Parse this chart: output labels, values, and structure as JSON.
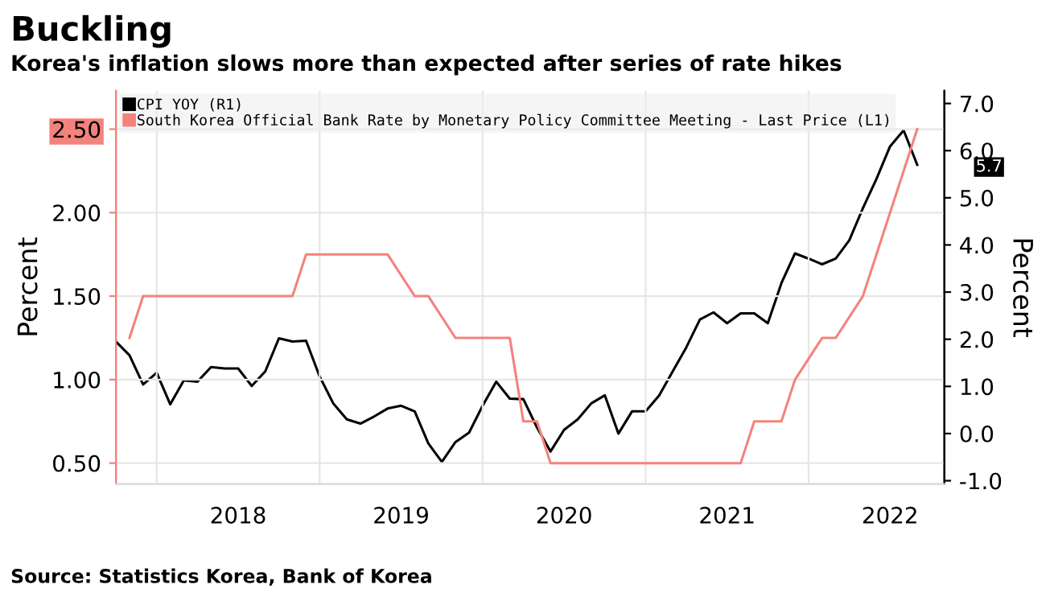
{
  "chart_data": {
    "type": "line",
    "title": "Buckling",
    "subtitle": "Korea's inflation slows more than expected after series of rate hikes",
    "ylabel": "Percent",
    "y2label": "Percent",
    "series": [
      {
        "name": "CPI YOY (R1)",
        "color": "#000000",
        "axis": "y2",
        "x": [
          "2017-10",
          "2017-11",
          "2017-12",
          "2018-01",
          "2018-02",
          "2018-03",
          "2018-04",
          "2018-05",
          "2018-06",
          "2018-07",
          "2018-08",
          "2018-09",
          "2018-10",
          "2018-11",
          "2018-12",
          "2019-01",
          "2019-02",
          "2019-03",
          "2019-04",
          "2019-05",
          "2019-06",
          "2019-07",
          "2019-08",
          "2019-09",
          "2019-10",
          "2019-11",
          "2019-12",
          "2020-01",
          "2020-02",
          "2020-03",
          "2020-04",
          "2020-05",
          "2020-06",
          "2020-07",
          "2020-08",
          "2020-09",
          "2020-10",
          "2020-11",
          "2020-12",
          "2021-01",
          "2021-02",
          "2021-03",
          "2021-04",
          "2021-05",
          "2021-06",
          "2021-07",
          "2021-08",
          "2021-09",
          "2021-10",
          "2021-11",
          "2021-12",
          "2022-01",
          "2022-02",
          "2022-03",
          "2022-04",
          "2022-05",
          "2022-06",
          "2022-07",
          "2022-08",
          "2022-09"
        ],
        "values": [
          1.95,
          1.66,
          1.04,
          1.29,
          0.62,
          1.13,
          1.1,
          1.41,
          1.38,
          1.38,
          1.01,
          1.32,
          2.02,
          1.95,
          1.97,
          1.21,
          0.64,
          0.3,
          0.21,
          0.36,
          0.53,
          0.59,
          0.47,
          -0.21,
          -0.6,
          -0.18,
          0.02,
          0.59,
          1.1,
          0.74,
          0.73,
          0.13,
          -0.38,
          0.08,
          0.3,
          0.64,
          0.81,
          0.0,
          0.47,
          0.47,
          0.81,
          1.32,
          1.83,
          2.42,
          2.57,
          2.34,
          2.55,
          2.55,
          2.34,
          3.19,
          3.82,
          3.71,
          3.59,
          3.71,
          4.1,
          4.78,
          5.4,
          6.09,
          6.43,
          5.7
        ]
      },
      {
        "name": "South Korea Official Bank Rate by Monetary Policy Committee Meeting - Last Price (L1)",
        "color": "#f4827c",
        "axis": "y",
        "x": [
          "2017-11",
          "2017-12",
          "2018-11",
          "2018-12",
          "2019-06",
          "2019-08",
          "2019-09",
          "2019-11",
          "2020-03",
          "2020-04",
          "2020-05",
          "2020-06",
          "2021-08",
          "2021-09",
          "2021-11",
          "2021-12",
          "2022-02",
          "2022-03",
          "2022-05",
          "2022-06",
          "2022-07",
          "2022-08",
          "2022-09"
        ],
        "values": [
          1.25,
          1.5,
          1.5,
          1.75,
          1.75,
          1.5,
          1.5,
          1.25,
          1.25,
          0.75,
          0.75,
          0.5,
          0.5,
          0.75,
          0.75,
          1.0,
          1.25,
          1.25,
          1.5,
          1.75,
          2.0,
          2.25,
          2.5
        ]
      }
    ],
    "xlim": [
      "2017-10",
      "2022-11"
    ],
    "xticks": [
      {
        "value": "2018-01",
        "label": null
      },
      {
        "value": "2018-07",
        "label": "2018"
      },
      {
        "value": "2019-01",
        "label": null
      },
      {
        "value": "2019-07",
        "label": "2019"
      },
      {
        "value": "2020-01",
        "label": null
      },
      {
        "value": "2020-07",
        "label": "2020"
      },
      {
        "value": "2021-01",
        "label": null
      },
      {
        "value": "2021-07",
        "label": "2021"
      },
      {
        "value": "2022-01",
        "label": null
      },
      {
        "value": "2022-07",
        "label": "2022"
      }
    ],
    "ylim": [
      0.375,
      2.73
    ],
    "yticks": [
      {
        "value": 0.5,
        "label": "0.50"
      },
      {
        "value": 1.0,
        "label": "1.00"
      },
      {
        "value": 1.5,
        "label": "1.50"
      },
      {
        "value": 2.0,
        "label": "2.00"
      },
      {
        "value": 2.5,
        "label": "2.50"
      }
    ],
    "y2lim": [
      -1.07,
      7.27
    ],
    "y2ticks": [
      {
        "value": -1,
        "label": "-1.0"
      },
      {
        "value": 0,
        "label": "0.0"
      },
      {
        "value": 1,
        "label": "1.0"
      },
      {
        "value": 2,
        "label": "2.0"
      },
      {
        "value": 3,
        "label": "3.0"
      },
      {
        "value": 4,
        "label": "4.0"
      },
      {
        "value": 5,
        "label": "5.0"
      },
      {
        "value": 6,
        "label": "6.0"
      },
      {
        "value": 7,
        "label": "7.0"
      }
    ],
    "grid": true,
    "legend": "top left",
    "annotations": [
      "Source: Statistics Korea, Bank of Korea",
      "5.7"
    ]
  }
}
